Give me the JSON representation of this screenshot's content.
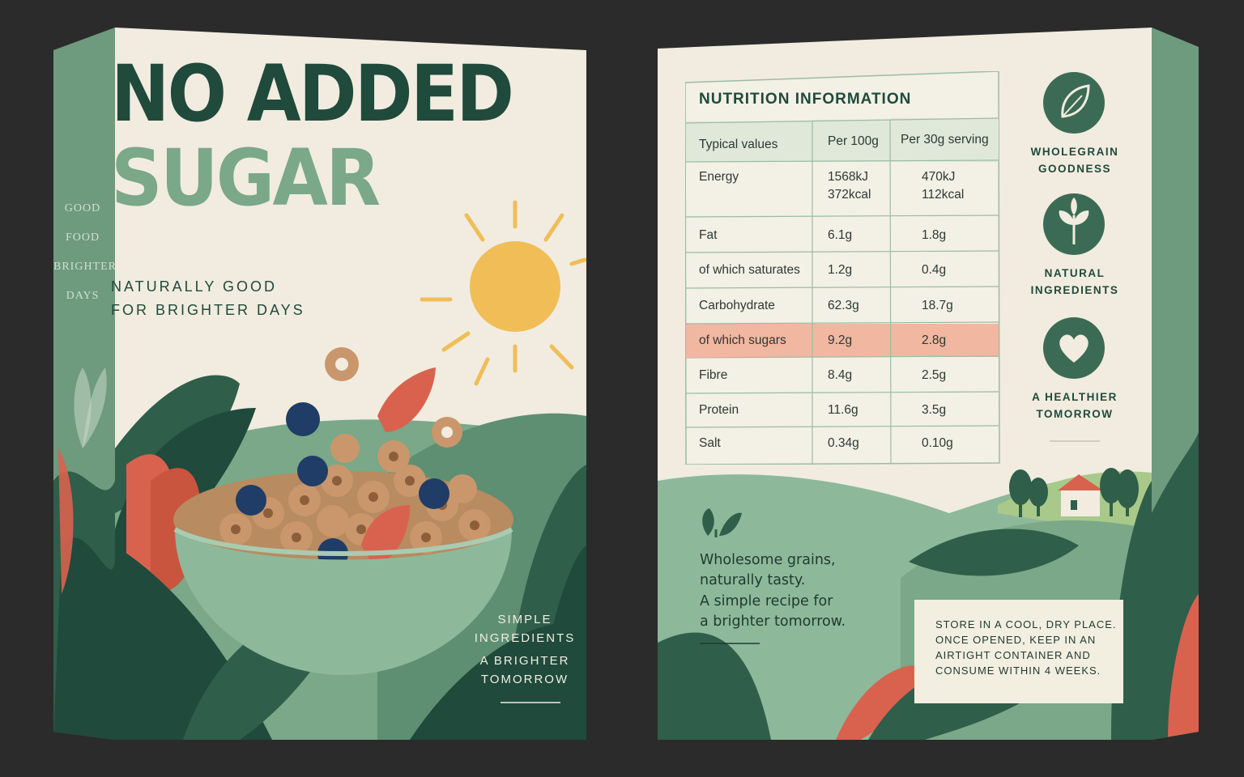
{
  "front": {
    "headline_line1": "NO ADDED",
    "headline_line2": "SUGAR",
    "tagline_line1": "NATURALLY GOOD",
    "tagline_line2": "FOR BRIGHTER DAYS",
    "spine_words": [
      "GOOD",
      "FOOD",
      "BRIGHTER",
      "DAYS"
    ],
    "footer_lines": [
      "SIMPLE",
      "INGREDIENTS",
      "A BRIGHTER",
      "TOMORROW"
    ]
  },
  "back": {
    "nutrition": {
      "title": "NUTRITION INFORMATION",
      "headers": [
        "Typical values",
        "Per 100g",
        "Per 30g serving"
      ],
      "rows": [
        {
          "label": "Energy",
          "per100": "1568kJ\n372kcal",
          "per30": "470kJ\n112kcal",
          "highlight": false
        },
        {
          "label": "Fat",
          "per100": "6.1g",
          "per30": "1.8g",
          "highlight": false
        },
        {
          "label": "of which saturates",
          "per100": "1.2g",
          "per30": "0.4g",
          "highlight": false
        },
        {
          "label": "Carbohydrate",
          "per100": "62.3g",
          "per30": "18.7g",
          "highlight": false
        },
        {
          "label": "of which sugars",
          "per100": "9.2g",
          "per30": "2.8g",
          "highlight": true
        },
        {
          "label": "Fibre",
          "per100": "8.4g",
          "per30": "2.5g",
          "highlight": false
        },
        {
          "label": "Protein",
          "per100": "11.6g",
          "per30": "3.5g",
          "highlight": false
        },
        {
          "label": "Salt",
          "per100": "0.34g",
          "per30": "0.10g",
          "highlight": false
        }
      ]
    },
    "badges": [
      {
        "icon": "leaf-icon",
        "lines": [
          "WHOLEGRAIN",
          "GOODNESS"
        ]
      },
      {
        "icon": "sprout-icon",
        "lines": [
          "NATURAL",
          "INGREDIENTS"
        ]
      },
      {
        "icon": "heart-icon",
        "lines": [
          "A HEALTHIER",
          "TOMORROW"
        ]
      }
    ],
    "copy_lines": [
      "Wholesome grains,",
      "naturally tasty.",
      "A simple recipe for",
      "a brighter tomorrow."
    ],
    "storage_lines": [
      "STORE IN A COOL, DRY PLACE.",
      "ONCE OPENED, KEEP IN AN",
      "AIRTIGHT CONTAINER AND",
      "CONSUME WITHIN 4 WEEKS."
    ]
  },
  "colors": {
    "background": "#2b2b2b",
    "cream": "#f1ecdf",
    "dark_green": "#1f4a3c",
    "mid_green": "#7aa888",
    "coral": "#d9624f",
    "sun": "#f0bd57",
    "sugar_highlight": "#f1b7a0"
  }
}
